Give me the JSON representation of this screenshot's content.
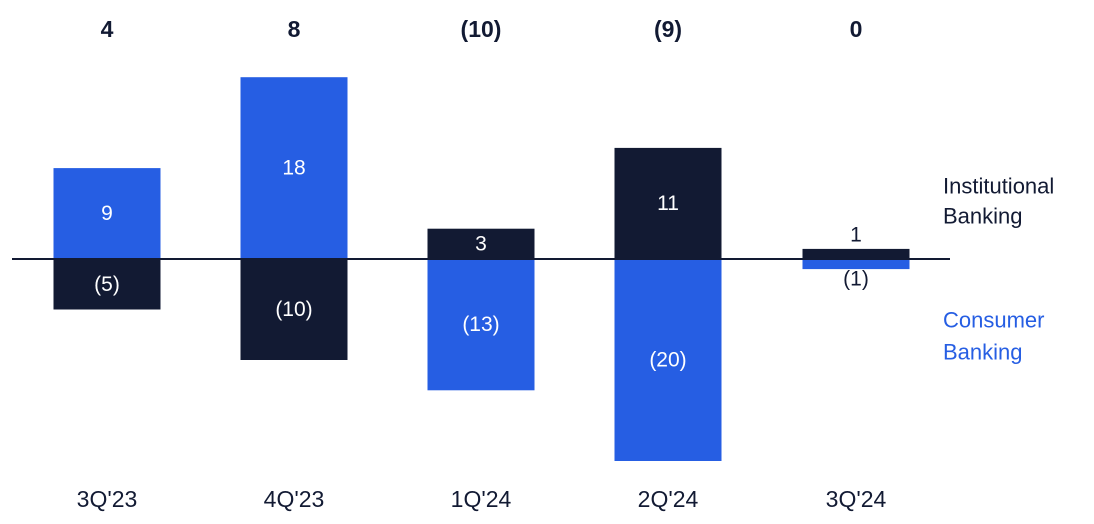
{
  "chart_data": {
    "type": "bar",
    "stacked": true,
    "categories": [
      "3Q'23",
      "4Q'23",
      "1Q'24",
      "2Q'24",
      "3Q'24"
    ],
    "totals": [
      "4",
      "8",
      "(10)",
      "(9)",
      "0"
    ],
    "series": [
      {
        "name": "Institutional Banking",
        "legend_lines": [
          "Institutional",
          "Banking"
        ],
        "values": [
          9,
          18,
          3,
          11,
          1
        ],
        "labels": [
          "9",
          "18",
          "3",
          "11",
          "1"
        ]
      },
      {
        "name": "Consumer Banking",
        "legend_lines": [
          "Consumer",
          "Banking"
        ],
        "values": [
          -5,
          -10,
          -13,
          -20,
          -1
        ],
        "labels": [
          "(5)",
          "(10)",
          "(13)",
          "(20)",
          "(1)"
        ]
      }
    ],
    "bar_colors": [
      [
        "#265ee3",
        "#121a33"
      ],
      [
        "#265ee3",
        "#121a33"
      ],
      [
        "#121a33",
        "#265ee3"
      ],
      [
        "#121a33",
        "#265ee3"
      ],
      [
        "#121a33",
        "#265ee3"
      ]
    ],
    "legend_colors": [
      "#121a33",
      "#265ee3"
    ],
    "label_colors": [
      "#ffffff",
      "#121a33"
    ]
  }
}
